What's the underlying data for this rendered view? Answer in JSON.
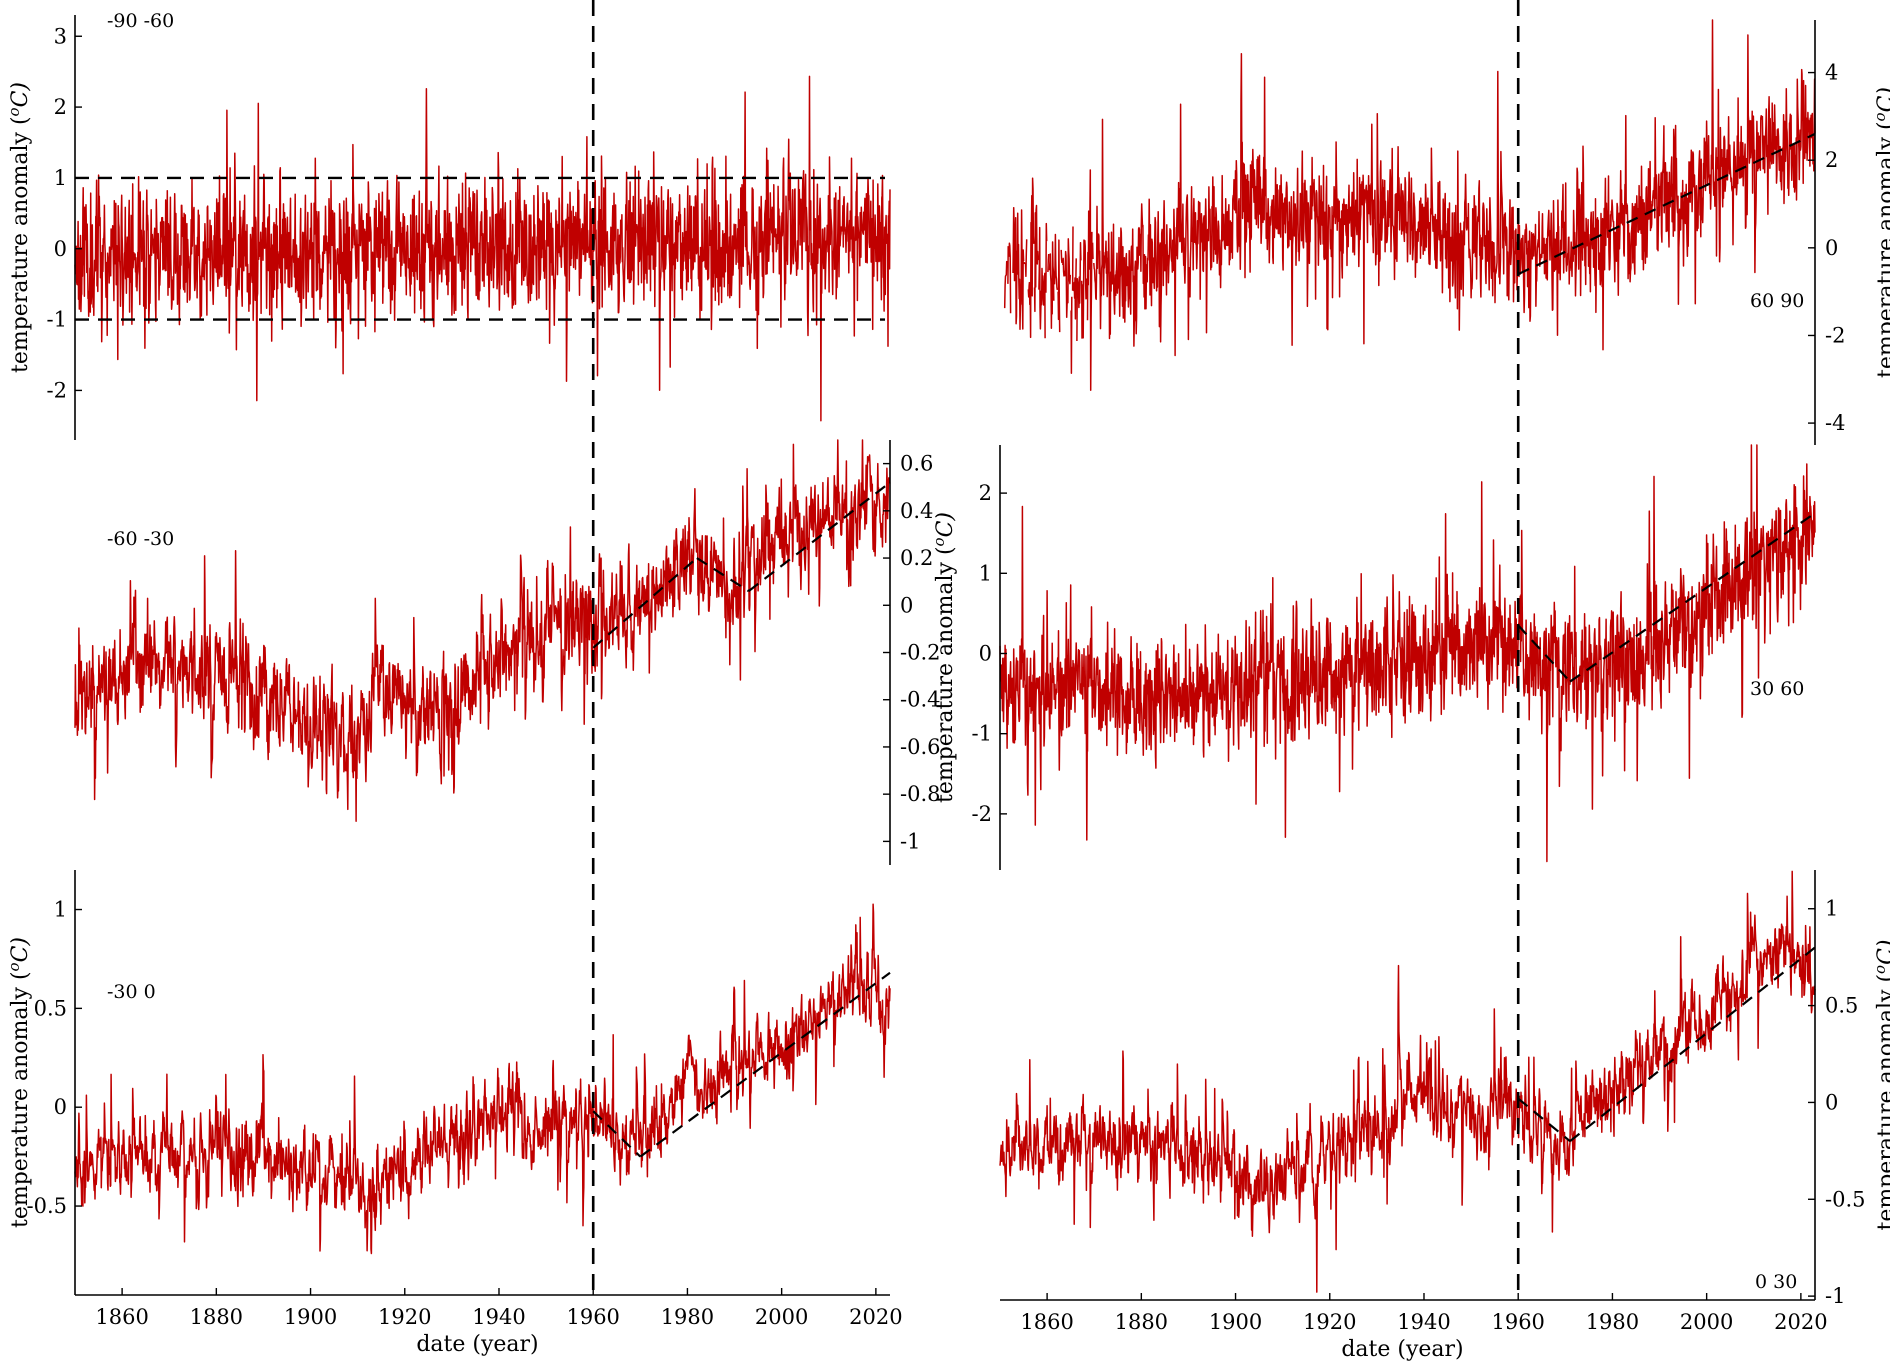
{
  "colors": {
    "series": "#c00000",
    "axes": "#000000",
    "guides": "#000000"
  },
  "chart_data": [
    {
      "type": "line",
      "panel_label": "-90 -60",
      "label_placement": "top-left",
      "ylabel": "temperature anomaly (°C)",
      "ylabel_parts": [
        "temperature anomaly (",
        "o",
        "C)"
      ],
      "xlabel": "",
      "y_axis_side": "left",
      "show_x_axis": false,
      "xlim": [
        1850,
        2023
      ],
      "ylim": [
        -2.7,
        3.3
      ],
      "yticks": [
        -2,
        -1,
        0,
        1,
        2,
        3
      ],
      "ytick_labels": [
        "-2",
        "-1",
        "0",
        "1",
        "2",
        "3"
      ],
      "noise": {
        "base_sd": 0.45,
        "spike": 0.8,
        "ar": 0.2,
        "seed": 11
      },
      "trend": [
        [
          1850,
          -0.1
        ],
        [
          1960,
          0.05
        ],
        [
          2023,
          0.25
        ]
      ],
      "reference_lines": [
        1,
        -1
      ],
      "fit_segments": []
    },
    {
      "type": "line",
      "panel_label": "60 90",
      "label_placement": "right",
      "ylabel": "temperature anomaly (°C)",
      "ylabel_parts": [
        "temperature anomaly (",
        "o",
        "C)"
      ],
      "xlabel": "",
      "y_axis_side": "right",
      "show_x_axis": false,
      "xlim": [
        1850,
        2023
      ],
      "ylim": [
        -4.5,
        5.2
      ],
      "yticks": [
        -4,
        -2,
        0,
        2,
        4
      ],
      "ytick_labels": [
        "-4",
        "-2",
        "0",
        "2",
        "4"
      ],
      "data_start": 1851,
      "gap_until": 1872,
      "noise": {
        "base_sd": 0.6,
        "spike": 1.4,
        "ar": 0.3,
        "seed": 23
      },
      "trend": [
        [
          1851,
          -0.6
        ],
        [
          1880,
          -0.4
        ],
        [
          1905,
          0.8
        ],
        [
          1930,
          0.6
        ],
        [
          1960,
          -0.1
        ],
        [
          1980,
          0.3
        ],
        [
          2000,
          1.6
        ],
        [
          2023,
          2.6
        ]
      ],
      "reference_lines": [],
      "fit_segments": [
        [
          [
            1960,
            -0.6
          ],
          [
            2023,
            2.6
          ]
        ]
      ]
    },
    {
      "type": "line",
      "panel_label": "-60 -30",
      "label_placement": "top-left",
      "ylabel": "",
      "xlabel": "",
      "y_axis_side": "right",
      "show_x_axis": false,
      "xlim": [
        1850,
        2023
      ],
      "ylim": [
        -1.1,
        0.7
      ],
      "yticks": [
        -1,
        -0.8,
        -0.6,
        -0.4,
        -0.2,
        0,
        0.2,
        0.4,
        0.6
      ],
      "ytick_labels": [
        "-1",
        "-0.8",
        "-0.6",
        "-0.4",
        "-0.2",
        "0",
        "0.2",
        "0.4",
        "0.6"
      ],
      "noise": {
        "base_sd": 0.09,
        "spike": 0.2,
        "ar": 0.55,
        "seed": 37
      },
      "trend": [
        [
          1850,
          -0.42
        ],
        [
          1860,
          -0.3
        ],
        [
          1870,
          -0.25
        ],
        [
          1880,
          -0.3
        ],
        [
          1890,
          -0.38
        ],
        [
          1900,
          -0.5
        ],
        [
          1910,
          -0.55
        ],
        [
          1915,
          -0.35
        ],
        [
          1920,
          -0.45
        ],
        [
          1930,
          -0.5
        ],
        [
          1940,
          -0.2
        ],
        [
          1950,
          -0.1
        ],
        [
          1960,
          -0.05
        ],
        [
          1970,
          0.0
        ],
        [
          1980,
          0.2
        ],
        [
          1990,
          0.1
        ],
        [
          2000,
          0.25
        ],
        [
          2010,
          0.35
        ],
        [
          2023,
          0.5
        ]
      ],
      "reference_lines": [],
      "fit_segments": [
        [
          [
            1960,
            -0.18
          ],
          [
            1982,
            0.2
          ]
        ],
        [
          [
            1982,
            0.2
          ],
          [
            1993,
            0.06
          ]
        ],
        [
          [
            1993,
            0.06
          ],
          [
            2023,
            0.52
          ]
        ]
      ]
    },
    {
      "type": "line",
      "panel_label": "30 60",
      "label_placement": "right",
      "ylabel": "temperature anomaly (°C)",
      "ylabel_parts": [
        "temperature anomaly (",
        "o",
        "C)"
      ],
      "xlabel": "",
      "y_axis_side": "left",
      "show_x_axis": false,
      "xlim": [
        1850,
        2023
      ],
      "ylim": [
        -2.7,
        2.6
      ],
      "yticks": [
        -2,
        -1,
        0,
        1,
        2
      ],
      "ytick_labels": [
        "-2",
        "-1",
        "0",
        "1",
        "2"
      ],
      "noise": {
        "base_sd": 0.35,
        "spike": 0.9,
        "ar": 0.3,
        "seed": 53
      },
      "trend": [
        [
          1850,
          -0.4
        ],
        [
          1880,
          -0.5
        ],
        [
          1900,
          -0.45
        ],
        [
          1920,
          -0.3
        ],
        [
          1940,
          0.0
        ],
        [
          1960,
          0.1
        ],
        [
          1970,
          -0.25
        ],
        [
          1985,
          -0.05
        ],
        [
          2000,
          0.6
        ],
        [
          2023,
          1.6
        ]
      ],
      "reference_lines": [],
      "fit_segments": [
        [
          [
            1960,
            0.35
          ],
          [
            1971,
            -0.35
          ]
        ],
        [
          [
            1971,
            -0.35
          ],
          [
            2023,
            1.75
          ]
        ]
      ]
    },
    {
      "type": "line",
      "panel_label": "-30 0",
      "label_placement": "top-left",
      "ylabel": "temperature anomaly (°C)",
      "ylabel_parts": [
        "temperature anomaly (",
        "o",
        "C)"
      ],
      "xlabel": "date (year)",
      "y_axis_side": "left",
      "show_x_axis": true,
      "xlim": [
        1850,
        2023
      ],
      "ylim": [
        -0.95,
        1.2
      ],
      "yticks": [
        -0.5,
        0,
        0.5,
        1
      ],
      "ytick_labels": [
        "-0.5",
        "0",
        "0.5",
        "1"
      ],
      "xticks": [
        1860,
        1880,
        1900,
        1920,
        1940,
        1960,
        1980,
        2000,
        2020
      ],
      "xtick_labels": [
        "1860",
        "1880",
        "1900",
        "1920",
        "1940",
        "1960",
        "1980",
        "2000",
        "2020"
      ],
      "noise": {
        "base_sd": 0.08,
        "spike": 0.22,
        "ar": 0.6,
        "seed": 71
      },
      "trend": [
        [
          1850,
          -0.3
        ],
        [
          1880,
          -0.22
        ],
        [
          1900,
          -0.35
        ],
        [
          1910,
          -0.42
        ],
        [
          1920,
          -0.3
        ],
        [
          1940,
          -0.05
        ],
        [
          1960,
          -0.1
        ],
        [
          1970,
          -0.2
        ],
        [
          1980,
          0.1
        ],
        [
          2000,
          0.3
        ],
        [
          2015,
          0.6
        ],
        [
          2023,
          0.5
        ]
      ],
      "reference_lines": [],
      "fit_segments": [
        [
          [
            1960,
            -0.02
          ],
          [
            1970,
            -0.25
          ]
        ],
        [
          [
            1970,
            -0.25
          ],
          [
            2023,
            0.68
          ]
        ]
      ]
    },
    {
      "type": "line",
      "panel_label": "0 30",
      "label_placement": "bottom-right",
      "ylabel": "temperature anomaly (°C)",
      "ylabel_parts": [
        "temperature anomaly (",
        "o",
        "C)"
      ],
      "xlabel": "date (year)",
      "y_axis_side": "right",
      "show_x_axis": true,
      "xlim": [
        1850,
        2023
      ],
      "ylim": [
        -1.02,
        1.2
      ],
      "yticks": [
        -1,
        -0.5,
        0,
        0.5,
        1
      ],
      "ytick_labels": [
        "-1",
        "-0.5",
        "0",
        "0.5",
        "1"
      ],
      "xticks": [
        1860,
        1880,
        1900,
        1920,
        1940,
        1960,
        1980,
        2000,
        2020
      ],
      "xtick_labels": [
        "1860",
        "1880",
        "1900",
        "1920",
        "1940",
        "1960",
        "1980",
        "2000",
        "2020"
      ],
      "noise": {
        "base_sd": 0.08,
        "spike": 0.22,
        "ar": 0.6,
        "seed": 89
      },
      "trend": [
        [
          1850,
          -0.25
        ],
        [
          1880,
          -0.2
        ],
        [
          1900,
          -0.35
        ],
        [
          1910,
          -0.4
        ],
        [
          1920,
          -0.25
        ],
        [
          1940,
          0.0
        ],
        [
          1960,
          -0.05
        ],
        [
          1970,
          -0.2
        ],
        [
          1980,
          0.1
        ],
        [
          2000,
          0.45
        ],
        [
          2015,
          0.8
        ],
        [
          2023,
          0.65
        ]
      ],
      "reference_lines": [],
      "fit_segments": [
        [
          [
            1960,
            0.02
          ],
          [
            1971,
            -0.2
          ]
        ],
        [
          [
            1971,
            -0.2
          ],
          [
            2023,
            0.8
          ]
        ]
      ]
    }
  ],
  "divider_year": 1960
}
